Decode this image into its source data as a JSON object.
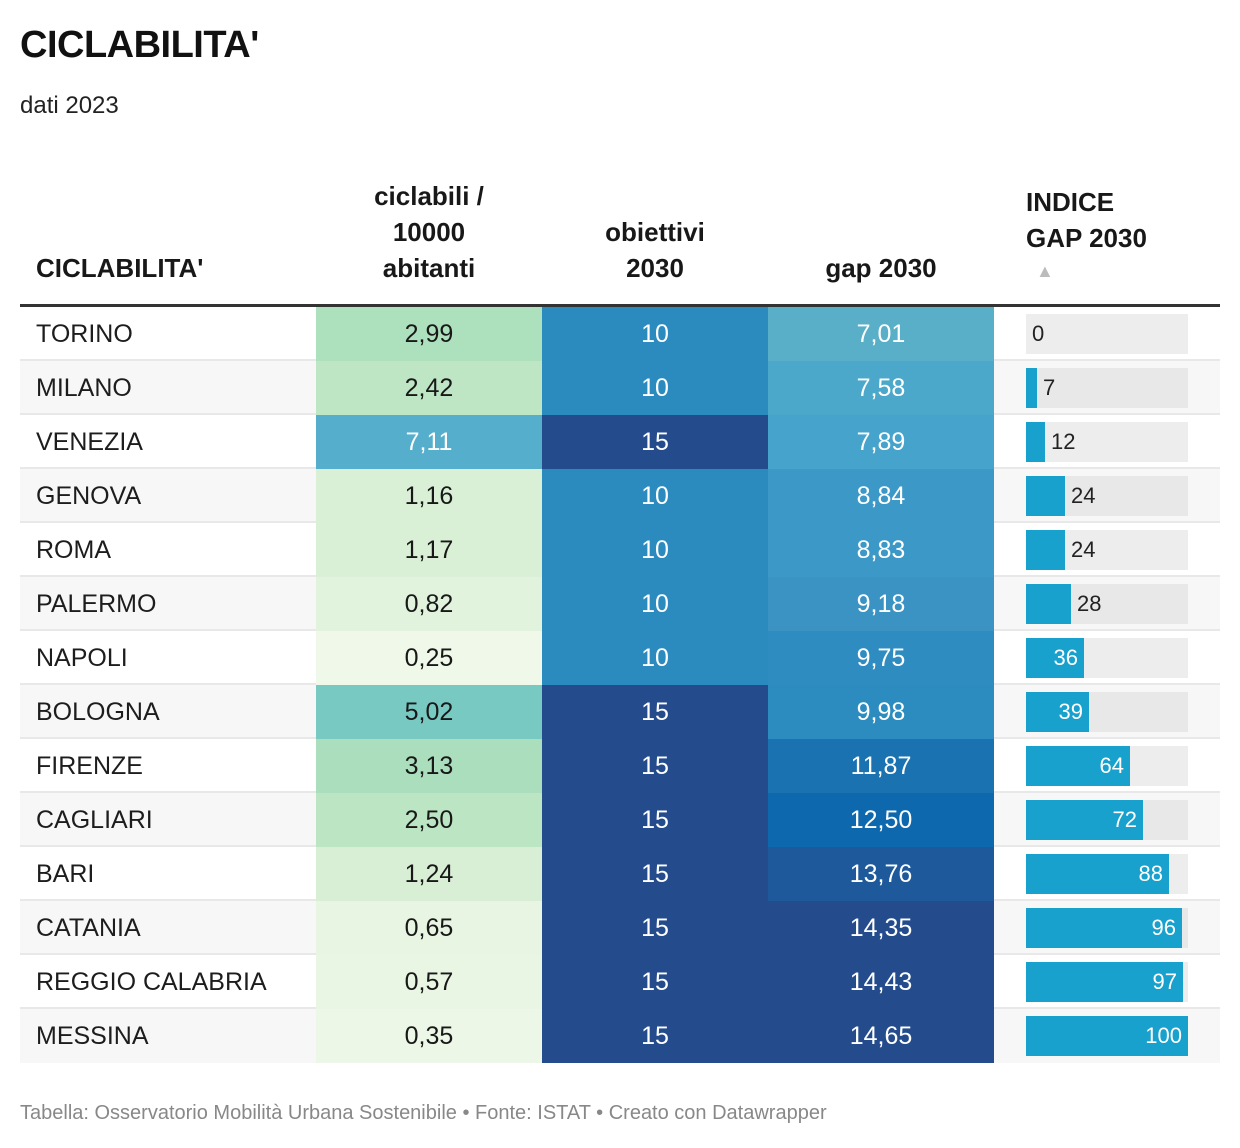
{
  "title": "CICLABILITA'",
  "subtitle": "dati 2023",
  "footer": "Tabella: Osservatorio Mobilità Urbana Sostenibile • Fonte: ISTAT • Creato con Datawrapper",
  "sort_icon": "▲",
  "colors": {
    "bar_fill": "#18a1cd",
    "bar_bg": "#e8e8e8",
    "header_rule": "#333333",
    "footer_text": "#888888"
  },
  "chart_data": {
    "type": "table",
    "title": "CICLABILITA'",
    "subtitle": "dati 2023",
    "columns": [
      {
        "key": "city",
        "label_lines": [
          "CICLABILITA'"
        ]
      },
      {
        "key": "ciclabili",
        "label_lines": [
          "ciclabili /",
          "10000",
          "abitanti"
        ]
      },
      {
        "key": "obiettivi",
        "label_lines": [
          "obiettivi",
          "2030"
        ]
      },
      {
        "key": "gap",
        "label_lines": [
          "gap 2030"
        ]
      },
      {
        "key": "indice",
        "label_lines": [
          "INDICE",
          "GAP 2030"
        ],
        "sorted": "ascending",
        "display": "bar",
        "max": 100
      }
    ],
    "rows": [
      {
        "city": "TORINO",
        "ciclabili": "2,99",
        "obiettivi": "10",
        "gap": "7,01",
        "indice": 0,
        "c1": "#ade0bd",
        "c2": "#2b8bbf",
        "c3": "#59aec8"
      },
      {
        "city": "MILANO",
        "ciclabili": "2,42",
        "obiettivi": "10",
        "gap": "7,58",
        "indice": 7,
        "c1": "#bee6c5",
        "c2": "#2b8bbf",
        "c3": "#4ba8cb"
      },
      {
        "city": "VENEZIA",
        "ciclabili": "7,11",
        "obiettivi": "15",
        "gap": "7,89",
        "indice": 12,
        "c1": "#55aecb",
        "c2": "#244c8c",
        "c3": "#46a3cb"
      },
      {
        "city": "GENOVA",
        "ciclabili": "1,16",
        "obiettivi": "10",
        "gap": "8,84",
        "indice": 24,
        "c1": "#d9f0d6",
        "c2": "#2b8bbf",
        "c3": "#3c98c6"
      },
      {
        "city": "ROMA",
        "ciclabili": "1,17",
        "obiettivi": "10",
        "gap": "8,83",
        "indice": 24,
        "c1": "#d9f0d6",
        "c2": "#2b8bbf",
        "c3": "#3c98c6"
      },
      {
        "city": "PALERMO",
        "ciclabili": "0,82",
        "obiettivi": "10",
        "gap": "9,18",
        "indice": 28,
        "c1": "#e1f3dd",
        "c2": "#2b8bbf",
        "c3": "#3a93c3"
      },
      {
        "city": "NAPOLI",
        "ciclabili": "0,25",
        "obiettivi": "10",
        "gap": "9,75",
        "indice": 36,
        "c1": "#f0f8ea",
        "c2": "#2b8bbf",
        "c3": "#2f8cc0"
      },
      {
        "city": "BOLOGNA",
        "ciclabili": "5,02",
        "obiettivi": "15",
        "gap": "9,98",
        "indice": 39,
        "c1": "#79c9c3",
        "c2": "#244c8c",
        "c3": "#2c8bbf"
      },
      {
        "city": "FIRENZE",
        "ciclabili": "3,13",
        "obiettivi": "15",
        "gap": "11,87",
        "indice": 64,
        "c1": "#aadebd",
        "c2": "#244c8c",
        "c3": "#1a72b1"
      },
      {
        "city": "CAGLIARI",
        "ciclabili": "2,50",
        "obiettivi": "15",
        "gap": "12,50",
        "indice": 72,
        "c1": "#bce5c4",
        "c2": "#244c8c",
        "c3": "#0e68ad"
      },
      {
        "city": "BARI",
        "ciclabili": "1,24",
        "obiettivi": "15",
        "gap": "13,76",
        "indice": 88,
        "c1": "#d8efd5",
        "c2": "#244c8c",
        "c3": "#1e599b"
      },
      {
        "city": "CATANIA",
        "ciclabili": "0,65",
        "obiettivi": "15",
        "gap": "14,35",
        "indice": 96,
        "c1": "#e7f5e2",
        "c2": "#244c8c",
        "c3": "#244c8c"
      },
      {
        "city": "REGGIO CALABRIA",
        "ciclabili": "0,57",
        "obiettivi": "15",
        "gap": "14,43",
        "indice": 97,
        "c1": "#e8f6e3",
        "c2": "#244c8c",
        "c3": "#244c8c"
      },
      {
        "city": "MESSINA",
        "ciclabili": "0,35",
        "obiettivi": "15",
        "gap": "14,65",
        "indice": 100,
        "c1": "#edf7e7",
        "c2": "#244c8c",
        "c3": "#244c8c"
      }
    ]
  }
}
